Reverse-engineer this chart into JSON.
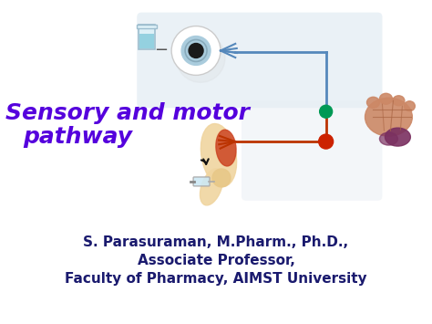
{
  "background_color": "#ffffff",
  "title_line1": "Sensory and motor",
  "title_line2": "pathway",
  "title_color": "#5500dd",
  "title_style": "italic",
  "title_weight": "bold",
  "title_fontsize": 18,
  "author_line1": "S. Parasuraman, M.Pharm., Ph.D.,",
  "author_line2": "Associate Professor,",
  "author_line3": "Faculty of Pharmacy, AIMST University",
  "author_color": "#1a1a6e",
  "author_fontsize": 11,
  "pathway_color_blue": "#5588bb",
  "pathway_color_red": "#bb3300",
  "node_green": "#009955",
  "node_red": "#cc2200",
  "diagram_bg": "#dde8f0",
  "diagram_bg2": "#e8eef4"
}
